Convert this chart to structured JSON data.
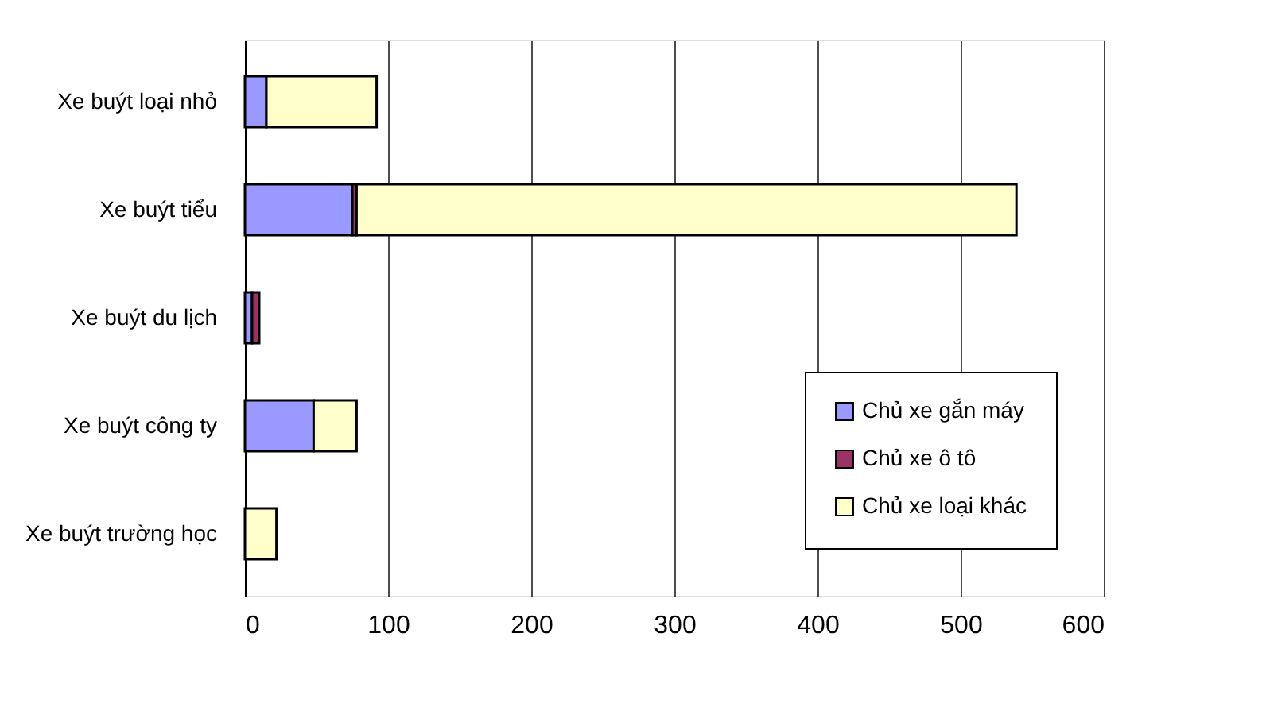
{
  "chart_data": {
    "type": "bar",
    "orientation": "horizontal",
    "stacked": true,
    "categories": [
      "Xe buýt loại nhỏ",
      "Xe buýt tiểu",
      "Xe buýt du lịch",
      "Xe buýt công ty",
      "Xe buýt trường học"
    ],
    "series": [
      {
        "name": "Chủ xe gắn máy",
        "color": "#9999ff",
        "values": [
          15,
          75,
          5,
          48,
          0
        ]
      },
      {
        "name": "Chủ xe ô tô",
        "color": "#993366",
        "values": [
          0,
          3,
          5,
          0,
          0
        ]
      },
      {
        "name": "Chủ xe loại khác",
        "color": "#ffffcc",
        "values": [
          77,
          461,
          0,
          30,
          22
        ]
      }
    ],
    "xlim": [
      0,
      600
    ],
    "xticks": [
      0,
      100,
      200,
      300,
      400,
      500,
      600
    ],
    "grid": "x",
    "legend": "bottom right"
  }
}
